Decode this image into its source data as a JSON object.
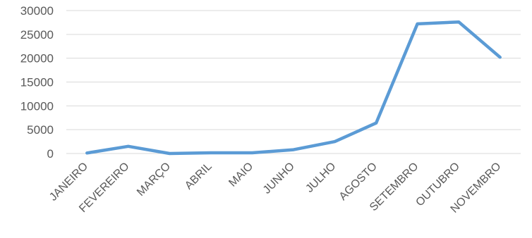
{
  "chart_data": {
    "type": "line",
    "title": "",
    "xlabel": "",
    "ylabel": "",
    "categories": [
      "JANEIRO",
      "FEVEREIRO",
      "MARÇO",
      "ABRIL",
      "MAIO",
      "JUNHO",
      "JULHO",
      "AGOSTO",
      "SETEMBRO",
      "OUTUBRO",
      "NOVEMBRO"
    ],
    "series": [
      {
        "values": [
          100,
          1500,
          0,
          150,
          150,
          800,
          2500,
          6400,
          27200,
          27600,
          20200
        ]
      }
    ],
    "ylim": [
      0,
      30000
    ],
    "yticks": [
      "0",
      "5000",
      "10000",
      "15000",
      "20000",
      "25000",
      "30000"
    ],
    "grid": true,
    "legend": "none",
    "colors": {
      "line": "#5b9bd5",
      "grid": "#d9d9d9",
      "text": "#595959"
    }
  }
}
